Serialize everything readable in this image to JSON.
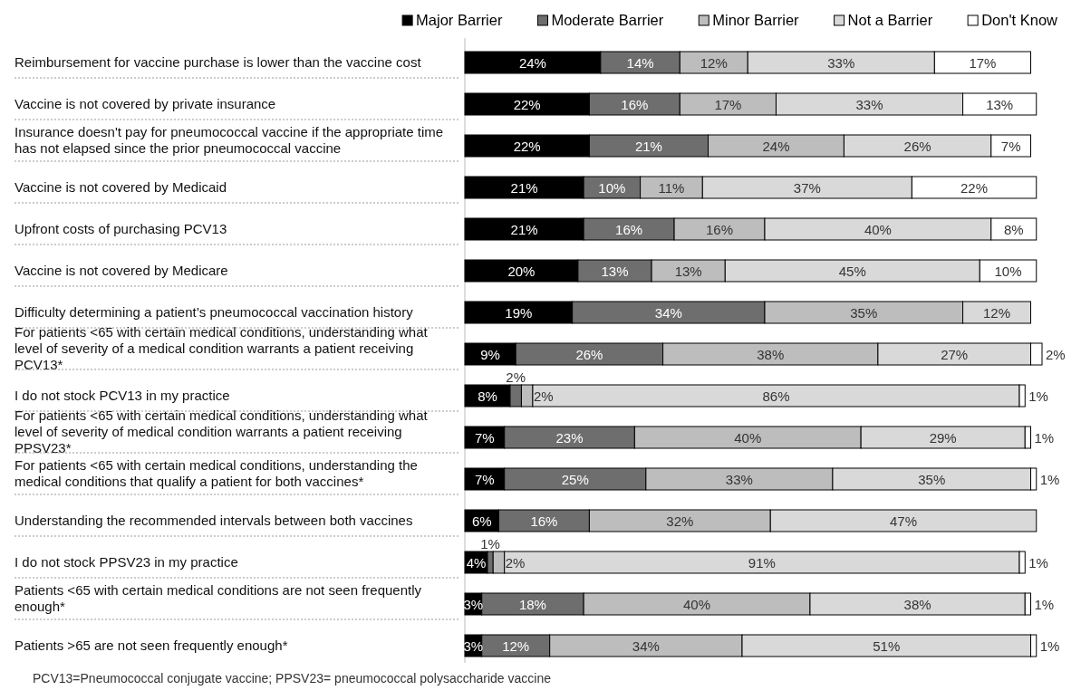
{
  "chart_data": {
    "type": "bar",
    "orientation": "horizontal",
    "stacked": true,
    "legend": "top",
    "xlim": [
      0,
      102
    ],
    "categories": [
      "Reimbursement for vaccine purchase is lower than the vaccine cost",
      "Vaccine is not covered by private insurance",
      "Insurance doesn't pay for pneumococcal vaccine if the appropriate time has not elapsed since the prior pneumococcal vaccine",
      "Vaccine is not covered by Medicaid",
      "Upfront costs of purchasing PCV13",
      "Vaccine is not covered by Medicare",
      "Difficulty determining a patient’s pneumococcal vaccination history",
      "For patients <65 with certain medical conditions, understanding what level of severity of a medical condition warrants a patient receiving PCV13*",
      "I do not stock PCV13 in my practice",
      "For patients <65 with certain medical conditions, understanding what level of severity of  medical condition warrants a patient receiving PPSV23*",
      "For patients <65 with certain medical conditions, understanding the medical conditions that qualify a patient for both vaccines*",
      "Understanding the recommended intervals between both vaccines",
      "I do not stock PPSV23 in my practice",
      "Patients <65 with certain medical conditions are not seen frequently enough*",
      "Patients >65 are not seen frequently enough*"
    ],
    "series": [
      {
        "name": "Major Barrier",
        "color": "#000000",
        "values": [
          24,
          22,
          22,
          21,
          21,
          20,
          19,
          9,
          8,
          7,
          7,
          6,
          4,
          3,
          3
        ],
        "value_labels": [
          "24%",
          "22%",
          "22%",
          "21%",
          "21%",
          "20%",
          "19%",
          "9%",
          "8%",
          "7%",
          "7%",
          "6%",
          "4%",
          "3%",
          "3%"
        ]
      },
      {
        "name": "Moderate Barrier",
        "color": "#6e6e6e",
        "values": [
          14,
          16,
          21,
          10,
          16,
          13,
          34,
          26,
          2,
          23,
          25,
          16,
          1,
          18,
          12
        ],
        "value_labels": [
          "14%",
          "16%",
          "21%",
          "10%",
          "16%",
          "13%",
          "34%",
          "26%",
          "2%",
          "23%",
          "25%",
          "16%",
          "1%",
          "18%",
          "12%"
        ]
      },
      {
        "name": "Minor Barrier",
        "color": "#bdbdbd",
        "values": [
          12,
          17,
          24,
          11,
          16,
          13,
          35,
          38,
          2,
          40,
          33,
          32,
          2,
          40,
          34
        ],
        "value_labels": [
          "12%",
          "17%",
          "24%",
          "11%",
          "16%",
          "13%",
          "35%",
          "38%",
          "2%",
          "40%",
          "33%",
          "32%",
          "2%",
          "40%",
          "34%"
        ]
      },
      {
        "name": "Not a Barrier",
        "color": "#d9d9d9",
        "values": [
          33,
          33,
          26,
          37,
          40,
          45,
          12,
          27,
          86,
          29,
          35,
          47,
          91,
          38,
          51
        ],
        "value_labels": [
          "33%",
          "33%",
          "26%",
          "37%",
          "40%",
          "45%",
          "12%",
          "27%",
          "86%",
          "29%",
          "35%",
          "47%",
          "91%",
          "38%",
          "51%"
        ]
      },
      {
        "name": "Don't Know",
        "color": "#ffffff",
        "values": [
          17,
          13,
          7,
          22,
          8,
          10,
          null,
          2,
          1,
          1,
          1,
          null,
          1,
          1,
          1
        ],
        "value_labels": [
          "17%",
          "13%",
          "7%",
          "22%",
          "8%",
          "10%",
          null,
          "2%",
          "1%",
          "1%",
          "1%",
          null,
          "1%",
          "1%",
          "1%"
        ]
      }
    ],
    "annotations": [
      "PCV13=Pneumococcal conjugate vaccine; PPSV23= pneumococcal polysaccharide vaccine"
    ]
  }
}
